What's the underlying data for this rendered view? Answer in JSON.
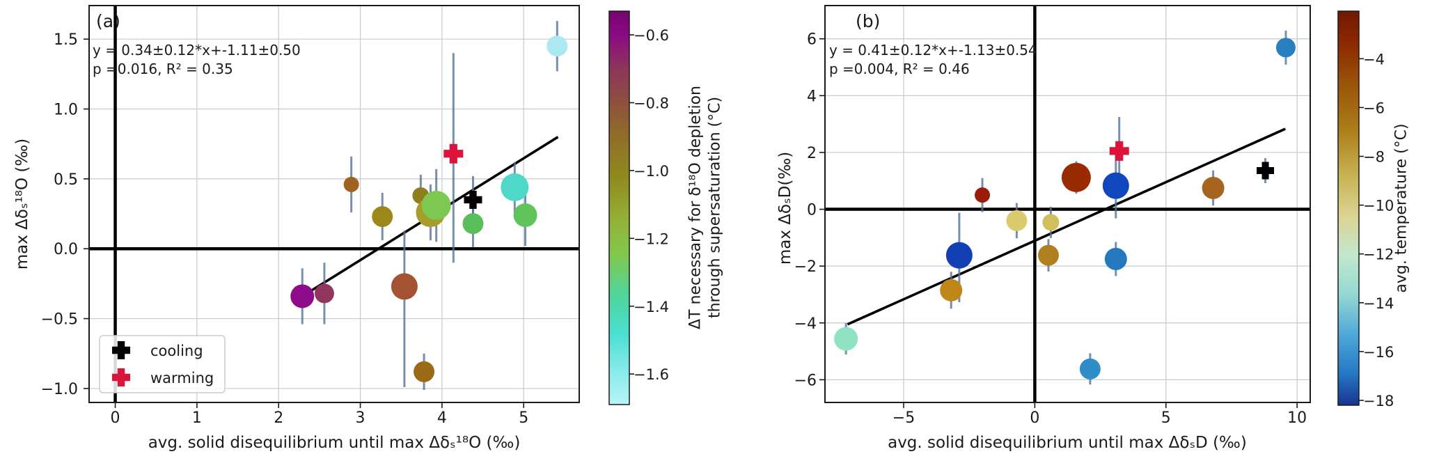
{
  "figure": {
    "background": "#ffffff",
    "grid_color": "#c9c9c9",
    "spine_color": "#1a1a1a",
    "errorbar_color": "#557499"
  },
  "chart_data": [
    {
      "type": "scatter",
      "panel": "a",
      "title": "(a)",
      "annotation": [
        "y = 0.34±0.12*x+-1.11±0.50",
        "p =0.016, R² = 0.35"
      ],
      "xlabel": "avg. solid disequilibrium until max Δδₛ¹⁸O (‰)",
      "ylabel": "max Δδₛ¹⁸O (‰)",
      "xlim": [
        -0.32,
        5.68
      ],
      "ylim": [
        -1.1,
        1.74
      ],
      "xticks": {
        "values": [
          0,
          1,
          2,
          3,
          4,
          5
        ],
        "labels": [
          "0",
          "1",
          "2",
          "3",
          "4",
          "5"
        ]
      },
      "yticks": {
        "values": [
          1.5,
          1.0,
          0.5,
          0.0,
          -0.5,
          -1.0
        ],
        "labels": [
          "1.5",
          "1.0",
          "0.5",
          "0.0",
          "−0.5",
          "−1.0"
        ]
      },
      "grid": true,
      "reference_lines": {
        "x": 0,
        "y": 0
      },
      "regression": {
        "slope": 0.34,
        "intercept": -1.11,
        "x1": 2.29,
        "y1": -0.34,
        "x2": 5.42,
        "y2": 0.8
      },
      "legend": {
        "position": "lower left",
        "items": [
          {
            "label": "cooling",
            "marker": "plus",
            "color": "#000000"
          },
          {
            "label": "warming",
            "marker": "plus",
            "color": "#DC143C"
          }
        ]
      },
      "colorbar": {
        "label_line1": "ΔT necessary for δ¹⁸O depletion",
        "label_line2": "through supersaturation (°C)",
        "range_top": -0.53,
        "range_bottom": -1.69,
        "ticks": {
          "values": [
            -0.6,
            -0.8,
            -1.0,
            -1.2,
            -1.4,
            -1.6
          ],
          "labels": [
            "−0.6",
            "−0.8",
            "−1.0",
            "−1.2",
            "−1.4",
            "−1.6"
          ]
        },
        "stops": [
          [
            0,
            "#76046E"
          ],
          [
            0.06,
            "#8A0A84"
          ],
          [
            0.14,
            "#8D335E"
          ],
          [
            0.22,
            "#8E4C41"
          ],
          [
            0.31,
            "#906B2B"
          ],
          [
            0.42,
            "#8F8A1E"
          ],
          [
            0.52,
            "#95AD33"
          ],
          [
            0.62,
            "#82C84E"
          ],
          [
            0.72,
            "#50D49A"
          ],
          [
            0.82,
            "#4ADFD2"
          ],
          [
            0.92,
            "#8BEBEB"
          ],
          [
            1,
            "#B8F4F6"
          ]
        ]
      },
      "points": [
        {
          "x": 2.29,
          "y": -0.34,
          "size": 34,
          "color": "#8E0B8A",
          "err": 0.2,
          "marker": "circle"
        },
        {
          "x": 2.56,
          "y": -0.32,
          "size": 28,
          "color": "#93365E",
          "err": 0.22,
          "marker": "circle"
        },
        {
          "x": 2.89,
          "y": 0.46,
          "size": 22,
          "color": "#A06220",
          "err": 0.2,
          "marker": "circle"
        },
        {
          "x": 3.27,
          "y": 0.23,
          "size": 30,
          "color": "#9C8818",
          "err": 0.17,
          "marker": "circle"
        },
        {
          "x": 3.54,
          "y": -0.27,
          "size": 38,
          "color": "#A55232",
          "err_lo": 0.72,
          "err_hi": 0.4,
          "marker": "circle"
        },
        {
          "x": 3.78,
          "y": -0.88,
          "size": 30,
          "color": "#9A6A16",
          "err": 0.13,
          "marker": "circle"
        },
        {
          "x": 3.74,
          "y": 0.38,
          "size": 24,
          "color": "#8F7E1E",
          "err": 0.15,
          "marker": "circle"
        },
        {
          "x": 3.86,
          "y": 0.26,
          "size": 42,
          "color": "#A79D2A",
          "err": 0.2,
          "marker": "circle"
        },
        {
          "x": 3.93,
          "y": 0.31,
          "size": 42,
          "color": "#7DC850",
          "err": 0.26,
          "marker": "circle"
        },
        {
          "x": 4.14,
          "y": 0.68,
          "size": 28,
          "color": "#DC143C",
          "err_lo": 0.78,
          "err_hi": 0.72,
          "marker": "plus",
          "series": "warming"
        },
        {
          "x": 4.38,
          "y": 0.35,
          "size": 26,
          "color": "#000000",
          "err": 0.17,
          "marker": "plus",
          "series": "cooling"
        },
        {
          "x": 4.38,
          "y": 0.18,
          "size": 30,
          "color": "#5ABE5A",
          "err": 0.17,
          "marker": "circle"
        },
        {
          "x": 4.89,
          "y": 0.44,
          "size": 40,
          "color": "#4ED8C8",
          "err": 0.18,
          "marker": "circle"
        },
        {
          "x": 5.02,
          "y": 0.24,
          "size": 34,
          "color": "#5FC45A",
          "err": 0.22,
          "marker": "circle"
        },
        {
          "x": 5.41,
          "y": 1.45,
          "size": 30,
          "color": "#AAE9F0",
          "err": 0.18,
          "marker": "circle"
        }
      ]
    },
    {
      "type": "scatter",
      "panel": "b",
      "title": "(b)",
      "annotation": [
        "y = 0.41±0.12*x+-1.13±0.54",
        "p =0.004, R² = 0.46"
      ],
      "xlabel": "avg. solid disequilibrium until max ΔδₛD (‰)",
      "ylabel": "max ΔδₛD(‰)",
      "xlim": [
        -8.0,
        10.5
      ],
      "ylim": [
        -6.8,
        7.17
      ],
      "xticks": {
        "values": [
          -5,
          0,
          5,
          10
        ],
        "labels": [
          "−5",
          "0",
          "5",
          "10"
        ]
      },
      "yticks": {
        "values": [
          6,
          4,
          2,
          0,
          -2,
          -4,
          -6
        ],
        "labels": [
          "6",
          "4",
          "2",
          "0",
          "−2",
          "−4",
          "−6"
        ]
      },
      "grid": true,
      "reference_lines": {
        "x": 0,
        "y": 0
      },
      "regression": {
        "slope": 0.41,
        "intercept": -1.13,
        "x1": -7.14,
        "y1": -4.05,
        "x2": 9.55,
        "y2": 2.83
      },
      "legend": null,
      "colorbar": {
        "label_line1": "avg. temperature (°C)",
        "label_line2": "",
        "range_top": -2.05,
        "range_bottom": -18.2,
        "ticks": {
          "values": [
            -4,
            -6,
            -8,
            -10,
            -12,
            -14,
            -16,
            -18
          ],
          "labels": [
            "−4",
            "−6",
            "−8",
            "−10",
            "−12",
            "−14",
            "−16",
            "−18"
          ]
        },
        "stops": [
          [
            0,
            "#701A00"
          ],
          [
            0.08,
            "#8C2800"
          ],
          [
            0.18,
            "#9A5208"
          ],
          [
            0.3,
            "#AB7D18"
          ],
          [
            0.42,
            "#C8B456"
          ],
          [
            0.52,
            "#DCD392"
          ],
          [
            0.62,
            "#C2E8D0"
          ],
          [
            0.72,
            "#93D8D2"
          ],
          [
            0.82,
            "#4FA8D8"
          ],
          [
            0.92,
            "#2478C4"
          ],
          [
            1,
            "#16348F"
          ]
        ]
      },
      "points": [
        {
          "x": -7.2,
          "y": -4.56,
          "size": 34,
          "color": "#8FE3C3",
          "err": 0.55,
          "marker": "circle"
        },
        {
          "x": -3.19,
          "y": -2.85,
          "size": 32,
          "color": "#BE8718",
          "err": 0.65,
          "marker": "circle"
        },
        {
          "x": -2.88,
          "y": -1.62,
          "size": 38,
          "color": "#1240B4",
          "err_lo": 1.65,
          "err_hi": 1.5,
          "marker": "circle"
        },
        {
          "x": -2.0,
          "y": 0.5,
          "size": 22,
          "color": "#9B1C0A",
          "err": 0.6,
          "marker": "circle"
        },
        {
          "x": -0.69,
          "y": -0.4,
          "size": 30,
          "color": "#DCCB6E",
          "err": 0.62,
          "marker": "circle"
        },
        {
          "x": 0.61,
          "y": -0.46,
          "size": 24,
          "color": "#D2BE5A",
          "err": 0.55,
          "marker": "circle"
        },
        {
          "x": 0.52,
          "y": -1.62,
          "size": 30,
          "color": "#B0801E",
          "err": 0.57,
          "marker": "circle"
        },
        {
          "x": 1.58,
          "y": 1.12,
          "size": 42,
          "color": "#9A2A02",
          "err": 0.57,
          "marker": "circle"
        },
        {
          "x": 2.11,
          "y": -5.62,
          "size": 30,
          "color": "#2E8FC8",
          "err": 0.55,
          "marker": "circle"
        },
        {
          "x": 3.09,
          "y": 0.83,
          "size": 38,
          "color": "#0F47BE",
          "err": 1.15,
          "marker": "circle"
        },
        {
          "x": 3.09,
          "y": -1.75,
          "size": 32,
          "color": "#2578BE",
          "err": 0.6,
          "marker": "circle"
        },
        {
          "x": 3.22,
          "y": 2.05,
          "size": 28,
          "color": "#DC143C",
          "err": 1.2,
          "marker": "plus",
          "series": "warming"
        },
        {
          "x": 6.8,
          "y": 0.75,
          "size": 32,
          "color": "#A5651E",
          "err": 0.62,
          "marker": "circle"
        },
        {
          "x": 8.79,
          "y": 1.36,
          "size": 25,
          "color": "#000000",
          "err": 0.44,
          "marker": "plus",
          "series": "cooling"
        },
        {
          "x": 9.57,
          "y": 5.69,
          "size": 28,
          "color": "#2880C0",
          "err": 0.6,
          "marker": "circle"
        }
      ]
    }
  ]
}
